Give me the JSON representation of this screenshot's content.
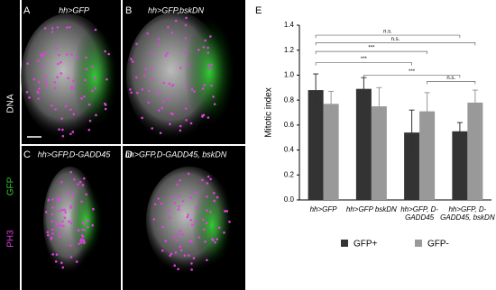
{
  "stains": [
    "DNA",
    "GFP",
    "PH3"
  ],
  "panels": [
    {
      "letter": "A",
      "label": "hh>GFP"
    },
    {
      "letter": "B",
      "label": "hh>GFP,bskDN"
    },
    {
      "letter": "C",
      "label": "hh>GFP,D-GADD45"
    },
    {
      "letter": "D",
      "label": "hh>GFP,D-GADD45, bskDN"
    }
  ],
  "chart_data": {
    "type": "bar",
    "panel": "E",
    "ylabel": "Mitotic index",
    "categories": [
      "hh>GFP",
      "hh>GFP bskDN",
      "hh>GFP, D-GADD45",
      "hh>GFP, D-GADD45, bskDN"
    ],
    "series": [
      {
        "name": "GFP+",
        "color": "#333333",
        "values": [
          0.88,
          0.89,
          0.54,
          0.55
        ],
        "errors": [
          0.13,
          0.09,
          0.18,
          0.07
        ]
      },
      {
        "name": "GFP-",
        "color": "#999999",
        "values": [
          0.77,
          0.75,
          0.71,
          0.78
        ],
        "errors": [
          0.1,
          0.15,
          0.15,
          0.1
        ]
      }
    ],
    "ylim": [
      0,
      1.4
    ],
    "yticks": [
      {
        "value": 0,
        "label": "0.0"
      },
      {
        "value": 0.2,
        "label": "0.2"
      },
      {
        "value": 0.4,
        "label": "0.4"
      },
      {
        "value": 0.6,
        "label": "0.6"
      },
      {
        "value": 0.8,
        "label": "0.8"
      },
      {
        "value": 1,
        "label": "1.0"
      },
      {
        "value": 1.2,
        "label": "1.2"
      },
      {
        "value": 1.4,
        "label": "1.4"
      }
    ],
    "significance": [
      {
        "from": [
          0,
          0
        ],
        "to": [
          3,
          0
        ],
        "y": 1.32,
        "label": "n.s."
      },
      {
        "from": [
          0,
          0
        ],
        "to": [
          3,
          1
        ],
        "y": 1.26,
        "label": "n.s."
      },
      {
        "from": [
          0,
          0
        ],
        "to": [
          2,
          1
        ],
        "y": 1.19,
        "label": "***"
      },
      {
        "from": [
          0,
          0
        ],
        "to": [
          2,
          0
        ],
        "y": 1.1,
        "label": "***"
      },
      {
        "from": [
          1,
          0
        ],
        "to": [
          3,
          0
        ],
        "y": 1.0,
        "label": "***"
      },
      {
        "from": [
          2,
          1
        ],
        "to": [
          3,
          1
        ],
        "y": 0.95,
        "label": "n.s."
      }
    ]
  }
}
